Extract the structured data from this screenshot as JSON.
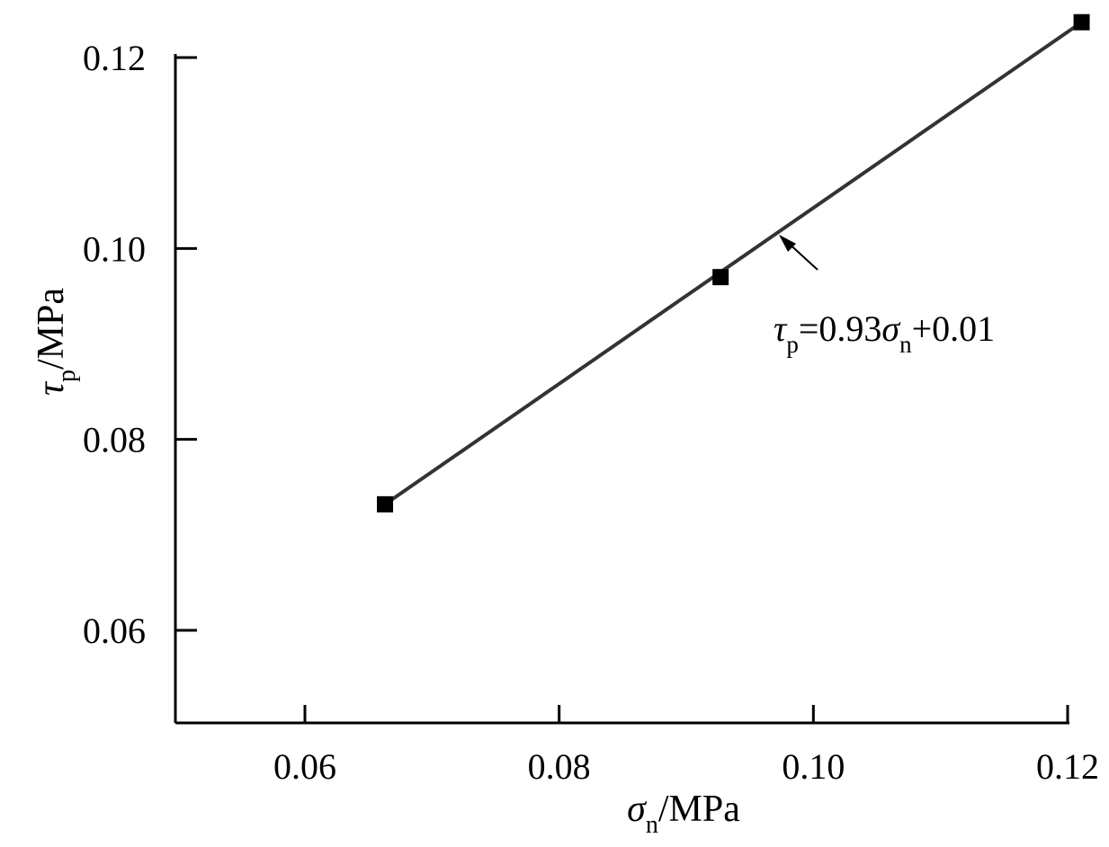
{
  "chart_data": {
    "type": "scatter",
    "title": "",
    "x_label": {
      "symbol": "σ",
      "subscript": "n",
      "unit": "/MPa"
    },
    "y_label": {
      "symbol": "τ",
      "subscript": "p",
      "unit": "/MPa"
    },
    "xlim": [
      0.05,
      0.12
    ],
    "ylim": [
      0.05,
      0.12
    ],
    "x_ticks": [
      0.06,
      0.08,
      0.1,
      0.12
    ],
    "x_tick_labels": [
      "0.06",
      "0.08",
      "0.10",
      "0.12"
    ],
    "y_ticks": [
      0.06,
      0.08,
      0.1,
      0.12
    ],
    "y_tick_labels": [
      "0.06",
      "0.08",
      "0.10",
      "0.12"
    ],
    "grid": false,
    "legend": null,
    "series": [
      {
        "marker": "square",
        "color": "#000000",
        "points": [
          {
            "x": 0.0663,
            "y": 0.0732
          },
          {
            "x": 0.0927,
            "y": 0.097
          },
          {
            "x": 0.1211,
            "y": 0.1237
          }
        ]
      }
    ],
    "fit_line": {
      "color": "#333333",
      "from": {
        "x": 0.0663,
        "y": 0.0732
      },
      "to": {
        "x": 0.1211,
        "y": 0.1237
      },
      "equation": {
        "lhs_symbol": "τ",
        "lhs_subscript": "p",
        "eq_coef": "=0.93",
        "rhs_symbol": "σ",
        "rhs_subscript": "n",
        "rhs_const": "+0.01"
      }
    }
  }
}
